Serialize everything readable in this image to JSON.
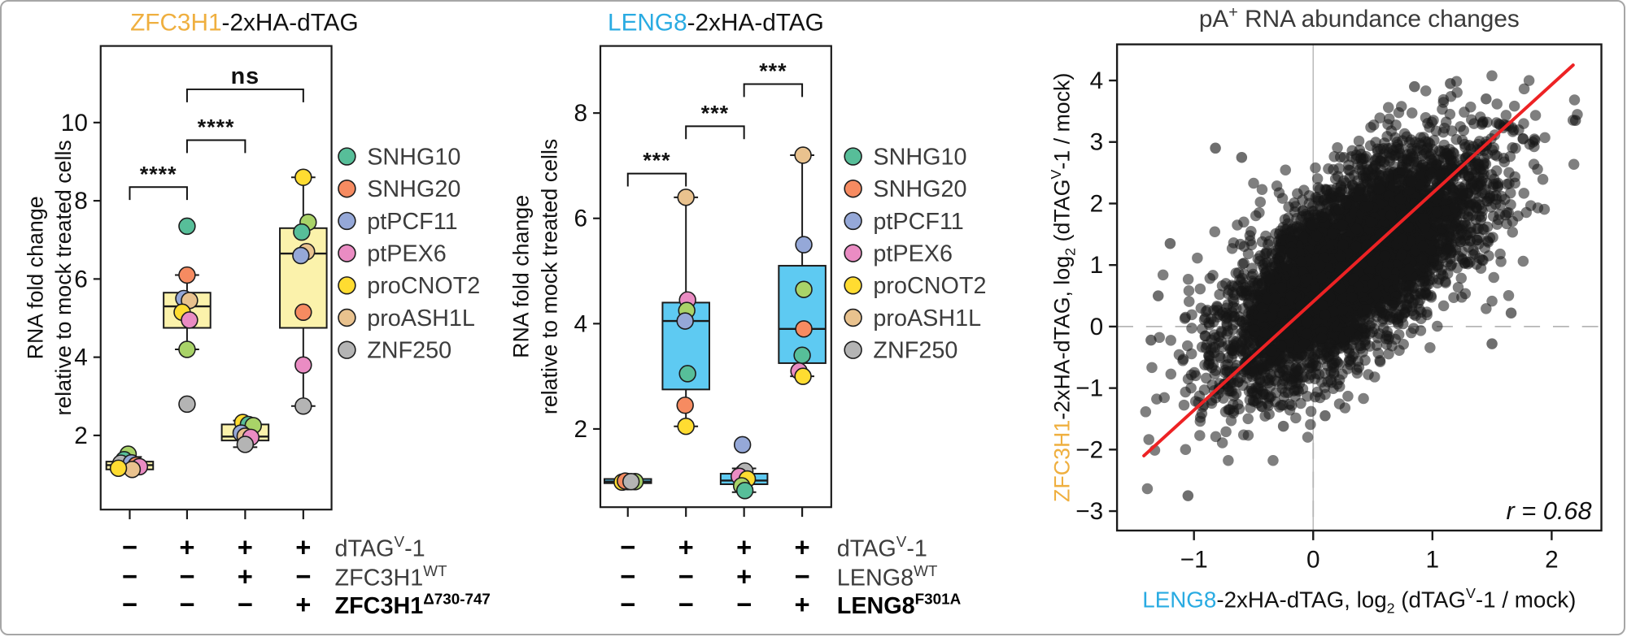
{
  "figure": {
    "background": "#ffffff",
    "border_color": "#a6a6a6"
  },
  "point_colors": {
    "teal": "#57BE99",
    "lg": "#A9D368",
    "orange": "#F68B61",
    "blue": "#95A8D8",
    "pink": "#EA8CC3",
    "yellow": "#FFDC31",
    "tan": "#E9C28E",
    "gray": "#B4B4B4"
  },
  "legend": {
    "items": [
      {
        "gene": "SNHG10",
        "color_key": "teal"
      },
      {
        "gene": "SNHG20",
        "color_key": "orange"
      },
      {
        "gene": "ptPCF11",
        "color_key": "blue"
      },
      {
        "gene": "ptPEX6",
        "color_key": "pink"
      },
      {
        "gene": "proCNOT2",
        "color_key": "yellow"
      },
      {
        "gene": "proASH1L",
        "color_key": "tan"
      },
      {
        "gene": "ZNF250",
        "color_key": "gray"
      }
    ]
  },
  "chart_data": [
    {
      "id": "zfc3h1-boxplot",
      "type": "box",
      "title": [
        {
          "t": "ZFC3H1",
          "color": "#EFAF3F"
        },
        {
          "t": "-2xHA-dTAG"
        }
      ],
      "ylabel": [
        "RNA fold change",
        "relative to mock treated cells"
      ],
      "yticks": [
        2,
        4,
        6,
        8,
        10
      ],
      "ylim": [
        0.1,
        11.9
      ],
      "box_fill": "#FBF2AB",
      "groups": [
        {
          "whisker_lo": 1.02,
          "q1": 1.13,
          "median": 1.24,
          "q3": 1.33,
          "whisker_hi": 1.45,
          "points": [
            {
              "c": "lg",
              "v": 1.52,
              "dx": -2
            },
            {
              "c": "teal",
              "v": 1.38,
              "dx": -7
            },
            {
              "c": "gray",
              "v": 1.29,
              "dx": -11
            },
            {
              "c": "blue",
              "v": 1.3,
              "dx": 2
            },
            {
              "c": "orange",
              "v": 1.24,
              "dx": 8
            },
            {
              "c": "pink",
              "v": 1.2,
              "dx": 12
            },
            {
              "c": "tan",
              "v": 1.13,
              "dx": 3
            },
            {
              "c": "yellow",
              "v": 1.16,
              "dx": -14
            }
          ]
        },
        {
          "whisker_lo": 4.2,
          "q1": 4.75,
          "median": 5.3,
          "q3": 5.65,
          "whisker_hi": 6.1,
          "points": [
            {
              "c": "teal",
              "v": 7.35,
              "dx": 0
            },
            {
              "c": "orange",
              "v": 6.1,
              "dx": 0
            },
            {
              "c": "blue",
              "v": 5.5,
              "dx": -4
            },
            {
              "c": "tan",
              "v": 5.45,
              "dx": 3
            },
            {
              "c": "yellow",
              "v": 5.15,
              "dx": -6
            },
            {
              "c": "pink",
              "v": 4.95,
              "dx": 3
            },
            {
              "c": "lg",
              "v": 4.2,
              "dx": 0
            },
            {
              "c": "gray",
              "v": 2.8,
              "dx": 0
            }
          ]
        },
        {
          "whisker_lo": 1.7,
          "q1": 1.87,
          "median": 1.97,
          "q3": 2.28,
          "whisker_hi": 2.38,
          "points": [
            {
              "c": "yellow",
              "v": 2.33,
              "dx": -3
            },
            {
              "c": "teal",
              "v": 2.28,
              "dx": 4
            },
            {
              "c": "lg",
              "v": 2.25,
              "dx": 10
            },
            {
              "c": "blue",
              "v": 2.06,
              "dx": -5
            },
            {
              "c": "tan",
              "v": 1.98,
              "dx": 0
            },
            {
              "c": "pink",
              "v": 1.95,
              "dx": 7
            },
            {
              "c": "gray",
              "v": 1.77,
              "dx": 0
            }
          ]
        },
        {
          "whisker_lo": 2.75,
          "q1": 4.75,
          "median": 6.65,
          "q3": 7.3,
          "whisker_hi": 8.6,
          "points": [
            {
              "c": "yellow",
              "v": 8.6,
              "dx": 0
            },
            {
              "c": "lg",
              "v": 7.45,
              "dx": 6
            },
            {
              "c": "teal",
              "v": 7.2,
              "dx": -2
            },
            {
              "c": "tan",
              "v": 6.7,
              "dx": 4
            },
            {
              "c": "blue",
              "v": 6.6,
              "dx": -3
            },
            {
              "c": "orange",
              "v": 5.15,
              "dx": 0
            },
            {
              "c": "pink",
              "v": 3.8,
              "dx": 0
            },
            {
              "c": "gray",
              "v": 2.75,
              "dx": 0
            }
          ]
        }
      ],
      "significance": [
        {
          "from": 0,
          "to": 1,
          "label": "****",
          "height": 8.35
        },
        {
          "from": 1,
          "to": 2,
          "label": "****",
          "height": 9.55
        },
        {
          "from": 1,
          "to": 3,
          "label": "ns",
          "height": 10.85
        }
      ],
      "condition_rows": [
        {
          "label": [
            {
              "t": "dTAG"
            },
            {
              "t": "V",
              "sup": true
            },
            {
              "t": "-1"
            }
          ],
          "values": [
            "-",
            "+",
            "+",
            "+"
          ],
          "color": "#3c3c3c",
          "bold": false
        },
        {
          "label": [
            {
              "t": "ZFC3H1"
            },
            {
              "t": "WT",
              "sup": true
            }
          ],
          "values": [
            "-",
            "-",
            "+",
            "-"
          ],
          "color": "#3c3c3c",
          "bold": false
        },
        {
          "label": [
            {
              "t": "ZFC3H1"
            },
            {
              "t": "Δ730-747",
              "sup": true
            }
          ],
          "values": [
            "-",
            "-",
            "-",
            "+"
          ],
          "color": "#000000",
          "bold": true
        }
      ]
    },
    {
      "id": "leng8-boxplot",
      "type": "box",
      "title": [
        {
          "t": "LENG8",
          "color": "#29ABE2"
        },
        {
          "t": "-2xHA-dTAG"
        }
      ],
      "ylabel": [
        "RNA fold change",
        "relative to mock treated cells"
      ],
      "yticks": [
        2,
        4,
        6,
        8
      ],
      "ylim": [
        0.5,
        9.25
      ],
      "box_fill": "#5ECAF2",
      "groups": [
        {
          "whisker_lo": 0.93,
          "q1": 0.97,
          "median": 1.0,
          "q3": 1.05,
          "whisker_hi": 1.08,
          "points": [
            {
              "c": "tan",
              "v": 1.0,
              "dx": 0
            },
            {
              "c": "lg",
              "v": 1.0,
              "dx": 9
            },
            {
              "c": "yellow",
              "v": 0.99,
              "dx": -7
            },
            {
              "c": "orange",
              "v": 1.01,
              "dx": -3
            },
            {
              "c": "gray",
              "v": 1.0,
              "dx": 4
            }
          ]
        },
        {
          "whisker_lo": 2.05,
          "q1": 2.75,
          "median": 4.05,
          "q3": 4.4,
          "whisker_hi": 6.4,
          "points": [
            {
              "c": "tan",
              "v": 6.4,
              "dx": 0
            },
            {
              "c": "pink",
              "v": 4.45,
              "dx": 2
            },
            {
              "c": "lg",
              "v": 4.25,
              "dx": 1
            },
            {
              "c": "blue",
              "v": 4.05,
              "dx": -1
            },
            {
              "c": "teal",
              "v": 3.05,
              "dx": 2
            },
            {
              "c": "orange",
              "v": 2.45,
              "dx": -1
            },
            {
              "c": "yellow",
              "v": 2.05,
              "dx": 0
            }
          ]
        },
        {
          "whisker_lo": 0.8,
          "q1": 0.95,
          "median": 1.02,
          "q3": 1.15,
          "whisker_hi": 1.25,
          "points": [
            {
              "c": "blue",
              "v": 1.7,
              "dx": -2
            },
            {
              "c": "tan",
              "v": 1.17,
              "dx": -1
            },
            {
              "c": "gray",
              "v": 1.2,
              "dx": 1
            },
            {
              "c": "pink",
              "v": 1.1,
              "dx": -6
            },
            {
              "c": "yellow",
              "v": 1.05,
              "dx": 4
            },
            {
              "c": "lg",
              "v": 0.92,
              "dx": -3
            },
            {
              "c": "teal",
              "v": 0.83,
              "dx": 1
            }
          ]
        },
        {
          "whisker_lo": 3.0,
          "q1": 3.25,
          "median": 3.9,
          "q3": 5.1,
          "whisker_hi": 7.2,
          "points": [
            {
              "c": "tan",
              "v": 7.2,
              "dx": 1
            },
            {
              "c": "blue",
              "v": 5.5,
              "dx": 2
            },
            {
              "c": "lg",
              "v": 4.65,
              "dx": 2
            },
            {
              "c": "orange",
              "v": 3.9,
              "dx": 2
            },
            {
              "c": "teal",
              "v": 3.4,
              "dx": 0
            },
            {
              "c": "pink",
              "v": 3.1,
              "dx": -4
            },
            {
              "c": "yellow",
              "v": 3.0,
              "dx": 1
            }
          ]
        }
      ],
      "significance": [
        {
          "from": 0,
          "to": 1,
          "label": "***",
          "height": 6.85
        },
        {
          "from": 1,
          "to": 2,
          "label": "***",
          "height": 7.75
        },
        {
          "from": 2,
          "to": 3,
          "label": "***",
          "height": 8.55
        }
      ],
      "condition_rows": [
        {
          "label": [
            {
              "t": "dTAG"
            },
            {
              "t": "V",
              "sup": true
            },
            {
              "t": "-1"
            }
          ],
          "values": [
            "-",
            "+",
            "+",
            "+"
          ],
          "color": "#3c3c3c",
          "bold": false
        },
        {
          "label": [
            {
              "t": "LENG8"
            },
            {
              "t": "WT",
              "sup": true
            }
          ],
          "values": [
            "-",
            "-",
            "+",
            "-"
          ],
          "color": "#3c3c3c",
          "bold": false
        },
        {
          "label": [
            {
              "t": "LENG8"
            },
            {
              "t": "F301A",
              "sup": true
            }
          ],
          "values": [
            "-",
            "-",
            "-",
            "+"
          ],
          "color": "#000000",
          "bold": true
        }
      ]
    },
    {
      "id": "pa-rna-scatter",
      "type": "scatter",
      "title": [
        {
          "t": "pA"
        },
        {
          "t": "+",
          "sup": true
        },
        {
          "t": " RNA abundance changes"
        }
      ],
      "title_color": "#3a3a3a",
      "xlabel": [
        {
          "t": "LENG8",
          "color": "#29ABE2"
        },
        {
          "t": "-2xHA-dTAG,  log"
        },
        {
          "t": "2",
          "sub": true
        },
        {
          "t": " (dTAG"
        },
        {
          "t": "V",
          "sup": true
        },
        {
          "t": "-1 / mock)"
        }
      ],
      "ylabel": [
        {
          "t": "ZFC3H1",
          "color": "#EFAF3F"
        },
        {
          "t": "-2xHA-dTAG,  log"
        },
        {
          "t": "2",
          "sub": true
        },
        {
          "t": " (dTAG"
        },
        {
          "t": "V",
          "sup": true
        },
        {
          "t": "-1 / mock)"
        }
      ],
      "xticks": [
        -1,
        0,
        1,
        2
      ],
      "yticks": [
        -3,
        -2,
        -1,
        0,
        1,
        2,
        3,
        4
      ],
      "xlim": [
        -1.65,
        2.42
      ],
      "ylim": [
        -3.3,
        4.6
      ],
      "zero_lines": true,
      "cloud": {
        "n": 5200,
        "seed": 42,
        "center": [
          0.32,
          1.0
        ],
        "sd": [
          0.55,
          0.98
        ],
        "pearson_r": 0.68,
        "clip_x": [
          -1.44,
          2.3
        ],
        "clip_y": [
          -2.82,
          4.12
        ]
      },
      "outlier_points": [
        [
          -1.05,
          -2.75
        ],
        [
          -1.36,
          -0.22
        ],
        [
          -1.2,
          1.35
        ],
        [
          -1.3,
          0.5
        ],
        [
          2.2,
          3.35
        ],
        [
          1.66,
          0.22
        ],
        [
          1.5,
          -0.28
        ],
        [
          -0.25,
          -1.62
        ],
        [
          0.1,
          -1.45
        ],
        [
          -0.7,
          -1.35
        ],
        [
          1.15,
          3.95
        ],
        [
          1.45,
          3.7
        ],
        [
          0.85,
          3.9
        ],
        [
          -0.82,
          2.9
        ],
        [
          -0.6,
          2.75
        ]
      ],
      "fit_line": {
        "x1": -1.42,
        "y1": -2.1,
        "x2": 2.18,
        "y2": 4.25,
        "color": "#ED2224"
      },
      "r_label": "r = 0.68",
      "correlation_r": 0.68
    }
  ]
}
